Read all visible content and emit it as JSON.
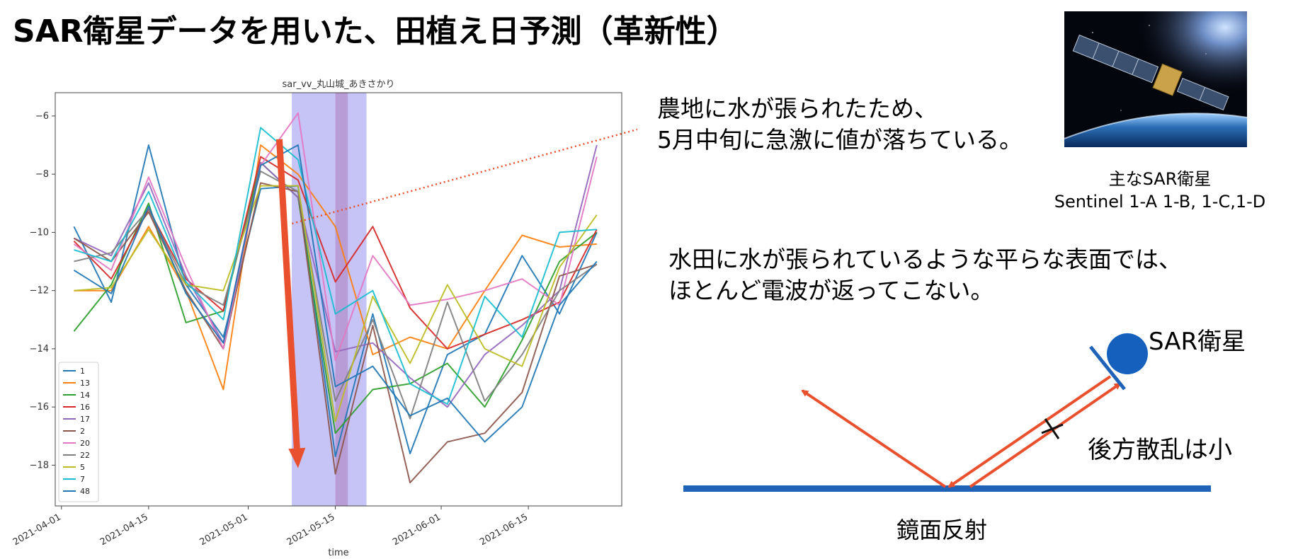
{
  "title": "SAR衛星データを用いた、田植え日予測（革新性）",
  "notes": {
    "top_line1": "農地に水が張られたため、",
    "top_line2": "5月中旬に急激に値が落ちている。",
    "mid_line1": "水田に水が張られているような平らな表面では、",
    "mid_line2": "ほとんど電波が返ってこない。"
  },
  "satellite": {
    "caption_line1": "主なSAR衛星",
    "caption_line2": "Sentinel 1-A 1-B, 1-C,1-D",
    "image_icon": "sar-satellite-photo"
  },
  "diagram": {
    "sar_label": "SAR衛星",
    "backscatter_label": "後方散乱は小",
    "mirror_label": "鏡面反射",
    "beam_color": "#e8502e",
    "surface_color": "#1f63b8",
    "satellite_color": "#1560bd"
  },
  "chart_data": {
    "type": "line",
    "title": "sar_vv_丸山城_あきさかり",
    "xlabel": "time",
    "ylabel": "",
    "x": [
      "2021-04-03",
      "2021-04-09",
      "2021-04-15",
      "2021-04-21",
      "2021-04-27",
      "2021-05-03",
      "2021-05-09",
      "2021-05-15",
      "2021-05-21",
      "2021-05-27",
      "2021-06-02",
      "2021-06-08",
      "2021-06-14",
      "2021-06-20",
      "2021-06-26"
    ],
    "x_ticks": [
      "2021-04-01",
      "2021-04-15",
      "2021-05-01",
      "2021-05-15",
      "2021-06-01",
      "2021-06-15"
    ],
    "x_range": [
      "2021-03-31",
      "2021-06-30"
    ],
    "y_ticks": [
      -6,
      -8,
      -10,
      -12,
      -14,
      -16,
      -18
    ],
    "ylim": [
      -19.4,
      -5.2
    ],
    "shaded_spans": [
      {
        "start": "2021-05-08",
        "end": "2021-05-20",
        "color": "#c3c0f6"
      },
      {
        "start": "2021-05-15",
        "end": "2021-05-17",
        "color": "#b79ad4"
      }
    ],
    "annotation_arrow": {
      "from": [
        "2021-05-06",
        -6.8
      ],
      "to": [
        "2021-05-09",
        -18.1
      ],
      "color": "#e8502e"
    },
    "grid": false,
    "legend_position": "lower-left",
    "series": [
      {
        "name": "1",
        "color": "#1f77b4",
        "values": [
          -9.8,
          -12.4,
          -7.0,
          -11.8,
          -13.6,
          -8.5,
          -8.4,
          -17.7,
          -12.8,
          -17.6,
          -14.2,
          -13.5,
          -10.8,
          -12.8,
          -10.0
        ]
      },
      {
        "name": "13",
        "color": "#ff7f0e",
        "values": [
          -12.0,
          -12.0,
          -9.8,
          -12.0,
          -15.4,
          -7.0,
          -8.0,
          -9.8,
          -14.2,
          -13.6,
          -14.0,
          -12.0,
          -10.1,
          -10.5,
          -10.4
        ]
      },
      {
        "name": "14",
        "color": "#2ca02c",
        "values": [
          -13.4,
          -11.8,
          -9.0,
          -13.1,
          -12.7,
          -7.6,
          -8.8,
          -16.9,
          -15.4,
          -15.2,
          -14.5,
          -16.0,
          -13.7,
          -11.0,
          -10.0
        ]
      },
      {
        "name": "16",
        "color": "#d62728",
        "values": [
          -10.3,
          -11.6,
          -9.2,
          -11.6,
          -12.7,
          -7.4,
          -8.2,
          -11.7,
          -9.8,
          -12.6,
          -14.0,
          -13.5,
          -13.0,
          -12.4,
          -9.9
        ]
      },
      {
        "name": "17",
        "color": "#9467bd",
        "values": [
          -10.2,
          -10.8,
          -8.3,
          -11.5,
          -13.8,
          -7.6,
          -8.8,
          -14.1,
          -13.8,
          -15.0,
          -16.0,
          -14.2,
          -13.2,
          -12.0,
          -7.0
        ]
      },
      {
        "name": "2",
        "color": "#8c564b",
        "values": [
          -10.2,
          -11.0,
          -9.3,
          -12.0,
          -14.0,
          -8.3,
          -8.6,
          -18.3,
          -13.2,
          -18.6,
          -17.2,
          -16.9,
          -15.5,
          -11.5,
          -11.1
        ]
      },
      {
        "name": "20",
        "color": "#e377c2",
        "values": [
          -10.4,
          -11.3,
          -8.1,
          -11.2,
          -14.0,
          -7.7,
          -5.9,
          -14.4,
          -10.8,
          -12.5,
          -12.3,
          -12.0,
          -11.6,
          -12.5,
          -7.4
        ]
      },
      {
        "name": "22",
        "color": "#7f7f7f",
        "values": [
          -11.0,
          -10.7,
          -9.2,
          -11.8,
          -12.5,
          -7.9,
          -8.6,
          -15.8,
          -13.0,
          -16.4,
          -12.4,
          -15.8,
          -14.2,
          -12.0,
          -11.1
        ]
      },
      {
        "name": "5",
        "color": "#bcbd22",
        "values": [
          -12.0,
          -11.9,
          -9.9,
          -11.8,
          -12.0,
          -8.4,
          -8.4,
          -16.5,
          -12.2,
          -14.5,
          -11.8,
          -14.0,
          -14.6,
          -11.2,
          -9.4
        ]
      },
      {
        "name": "7",
        "color": "#17becf",
        "values": [
          -10.6,
          -11.0,
          -8.6,
          -11.7,
          -13.0,
          -6.4,
          -7.5,
          -12.8,
          -12.0,
          -15.2,
          -15.9,
          -12.2,
          -13.6,
          -10.0,
          -9.9
        ]
      },
      {
        "name": "48",
        "color": "#1f77b4",
        "values": [
          -11.3,
          -12.1,
          -9.1,
          -12.1,
          -13.8,
          -7.7,
          -7.0,
          -15.3,
          -14.6,
          -16.3,
          -15.7,
          -17.2,
          -16.0,
          -12.5,
          -11.0
        ]
      }
    ]
  }
}
